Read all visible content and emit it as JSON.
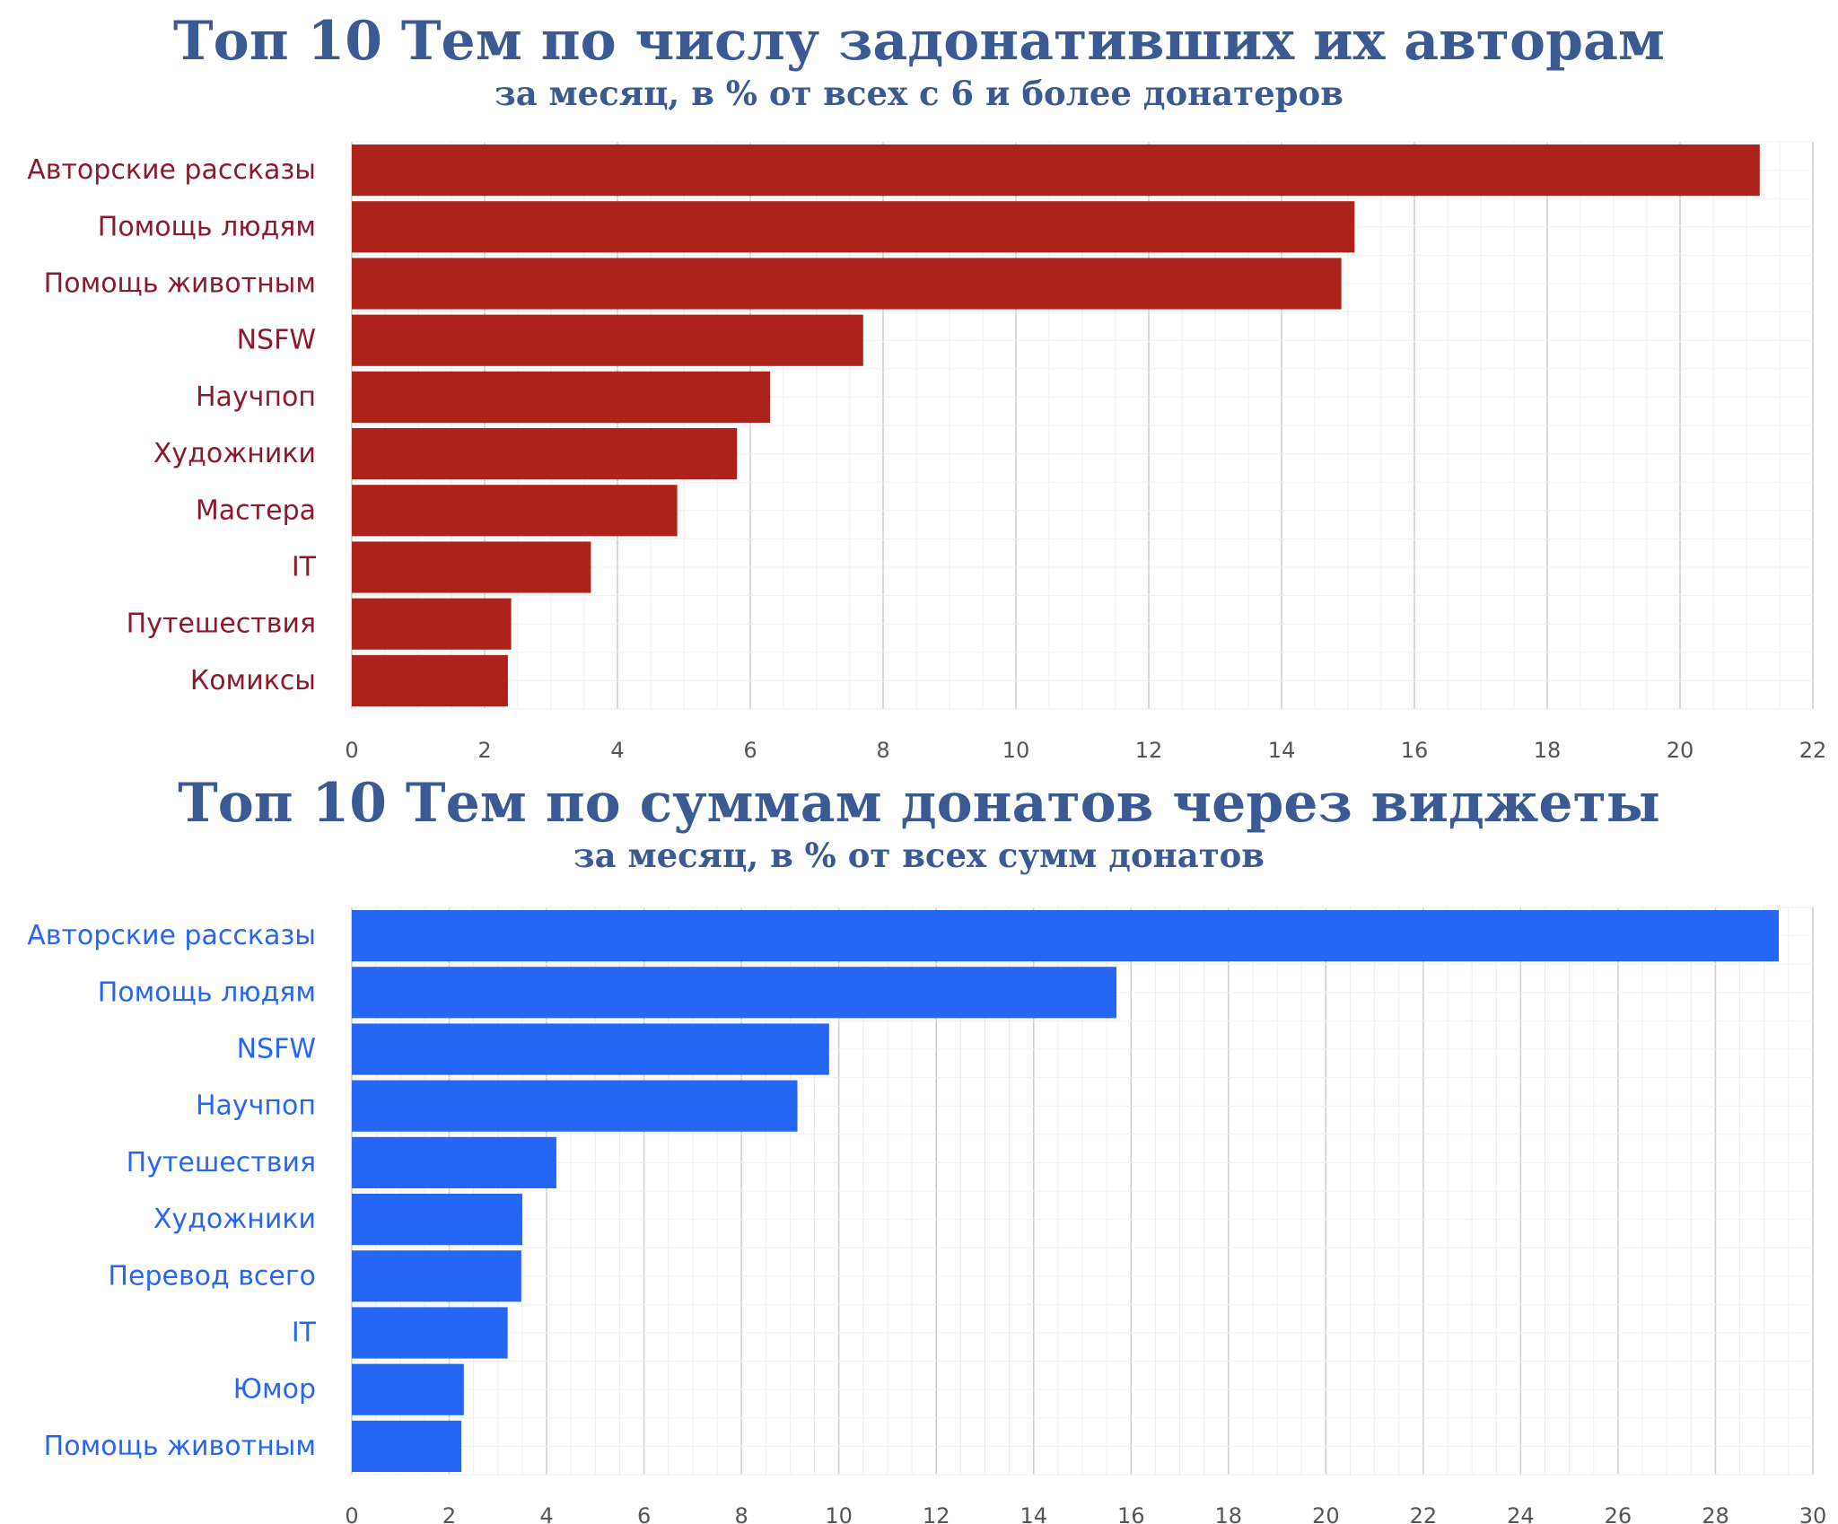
{
  "chart_data": [
    {
      "type": "bar",
      "orientation": "horizontal",
      "title": "Топ 10 Тем по числу задонативших их авторам",
      "subtitle": "за месяц, в % от всех с 6 и более донатеров",
      "xlabel": "",
      "ylabel": "",
      "categories": [
        "Авторские рассказы",
        "Помощь людям",
        "Помощь животным",
        "NSFW",
        "Научпоп",
        "Художники",
        "Мастера",
        "IT",
        "Путешествия",
        "Комиксы"
      ],
      "values": [
        21.2,
        15.1,
        14.9,
        7.7,
        6.3,
        5.8,
        4.9,
        3.6,
        2.4,
        2.35
      ],
      "xlim": [
        0,
        22
      ],
      "xticks": [
        0,
        2,
        4,
        6,
        8,
        10,
        12,
        14,
        16,
        18,
        20,
        22
      ],
      "minor_grid_step": 0.5,
      "grid": true,
      "bar_color": "#ad231b",
      "label_color": "#8b1a2d",
      "title_color": "#3b5a94",
      "tick_color": "#555555"
    },
    {
      "type": "bar",
      "orientation": "horizontal",
      "title": "Топ 10 Тем по суммам донатов через виджеты",
      "subtitle": "за месяц, в % от всех сумм донатов",
      "xlabel": "",
      "ylabel": "",
      "categories": [
        "Авторские рассказы",
        "Помощь людям",
        "NSFW",
        "Научпоп",
        "Путешествия",
        "Художники",
        "Перевод всего",
        "IT",
        "Юмор",
        "Помощь животным"
      ],
      "values": [
        29.3,
        15.7,
        9.8,
        9.15,
        4.2,
        3.5,
        3.48,
        3.2,
        2.3,
        2.25
      ],
      "xlim": [
        0,
        30
      ],
      "xticks": [
        0,
        2,
        4,
        6,
        8,
        10,
        12,
        14,
        16,
        18,
        20,
        22,
        24,
        26,
        28,
        30
      ],
      "minor_grid_step": 0.5,
      "grid": true,
      "bar_color": "#2666f5",
      "label_color": "#2666f5",
      "title_color": "#3b5a94",
      "tick_color": "#555555"
    }
  ]
}
